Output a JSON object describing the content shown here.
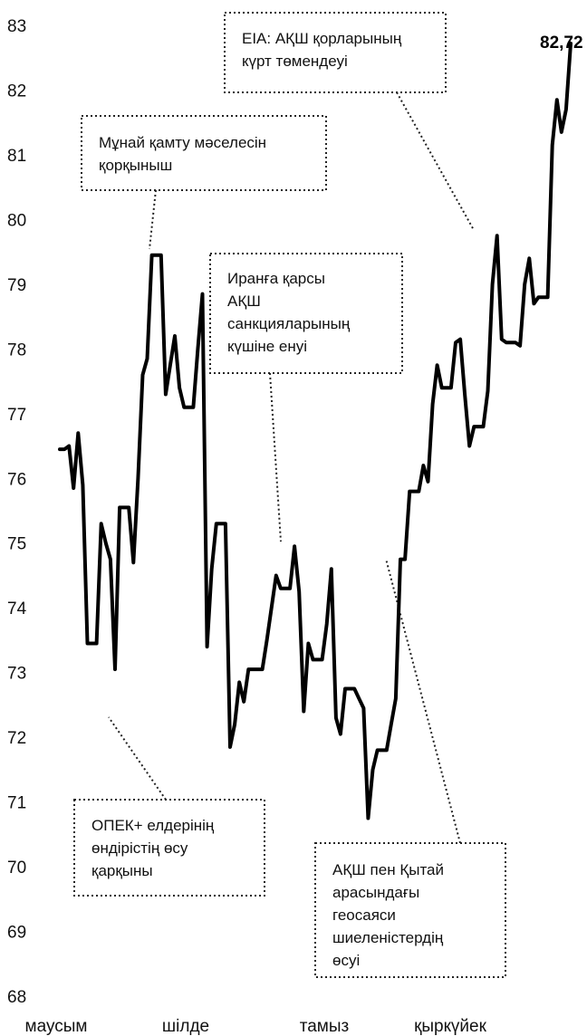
{
  "chart_data": {
    "type": "line",
    "title": "",
    "xlabel": "",
    "ylabel": "",
    "ylim": [
      68,
      83
    ],
    "y_ticks": [
      "68",
      "69",
      "70",
      "71",
      "72",
      "73",
      "74",
      "75",
      "76",
      "77",
      "78",
      "79",
      "80",
      "81",
      "82",
      "83"
    ],
    "x_tick_labels": [
      "маусым",
      "шілде",
      "тамыз",
      "қыркүйек"
    ],
    "grid": false,
    "legend": "none",
    "line_color": "#000000",
    "end_label": "82,72",
    "series": [
      {
        "values": [
          76.45,
          76.45,
          76.5,
          75.85,
          76.7,
          75.9,
          73.45,
          73.45,
          73.45,
          75.3,
          75.0,
          74.75,
          73.05,
          75.55,
          75.55,
          75.55,
          74.7,
          76.0,
          77.6,
          77.85,
          79.45,
          79.45,
          79.45,
          77.3,
          77.75,
          78.2,
          77.4,
          77.1,
          77.1,
          77.1,
          78.0,
          78.85,
          73.4,
          74.6,
          75.3,
          75.3,
          75.3,
          71.85,
          72.2,
          72.85,
          72.55,
          73.05,
          73.05,
          73.05,
          73.05,
          73.5,
          74.0,
          74.5,
          74.3,
          74.3,
          74.3,
          74.95,
          74.25,
          72.4,
          73.45,
          73.2,
          73.2,
          73.2,
          73.75,
          74.6,
          72.3,
          72.05,
          72.75,
          72.75,
          72.75,
          72.6,
          72.45,
          70.75,
          71.5,
          71.8,
          71.8,
          71.8,
          72.2,
          72.6,
          74.75,
          74.75,
          75.8,
          75.8,
          75.8,
          76.2,
          75.95,
          77.15,
          77.75,
          77.4,
          77.4,
          77.4,
          78.1,
          78.15,
          77.3,
          76.5,
          76.8,
          76.8,
          76.8,
          77.35,
          79.0,
          79.75,
          78.15,
          78.1,
          78.1,
          78.1,
          78.05,
          79.0,
          79.4,
          78.7,
          78.8,
          78.8,
          78.8,
          81.15,
          81.85,
          81.35,
          81.7,
          82.72
        ]
      }
    ],
    "annotations": [
      {
        "lines": [
          "EIA: АҚШ қорларының",
          "күрт төмендеуі"
        ]
      },
      {
        "lines": [
          "Мұнай қамту мәселесін",
          "қорқыныш"
        ]
      },
      {
        "lines": [
          "Иранға қарсы",
          "АҚШ",
          "санкцияларының",
          "күшіне енуі"
        ]
      },
      {
        "lines": [
          "ОПЕК+ елдерінің",
          "өндірістің өсу",
          "қарқыны"
        ]
      },
      {
        "lines": [
          "АҚШ пен Қытай",
          "арасындағы",
          "геосаяси",
          "шиеленістердің",
          "өсуі"
        ]
      }
    ]
  }
}
